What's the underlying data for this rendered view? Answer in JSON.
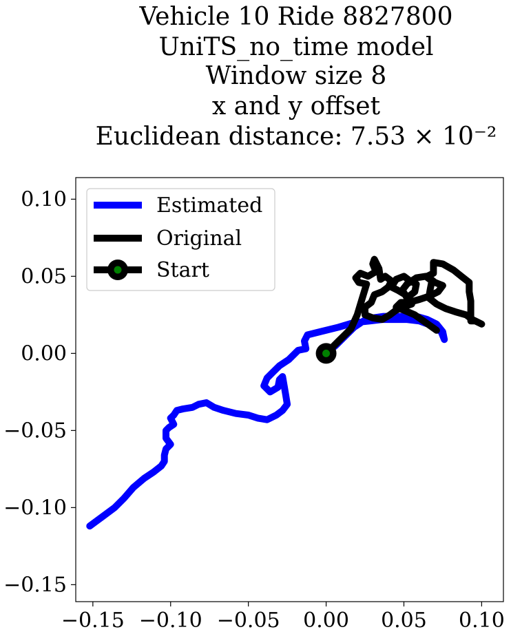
{
  "chart_data": {
    "type": "line",
    "title_lines": [
      "Vehicle 10 Ride 8827800",
      "UniTS_no_time model",
      "Window size 8",
      "x and y offset",
      "Euclidean distance: 7.53 × 10⁻²"
    ],
    "xlabel": "",
    "ylabel": "",
    "xlim": [
      -0.161,
      0.114
    ],
    "ylim": [
      -0.161,
      0.114
    ],
    "xticks": [
      -0.15,
      -0.1,
      -0.05,
      0.0,
      0.05,
      0.1
    ],
    "xtick_labels": [
      "−0.15",
      "−0.10",
      "−0.05",
      "0.00",
      "0.05",
      "0.10"
    ],
    "yticks": [
      -0.15,
      -0.1,
      -0.05,
      0.0,
      0.05,
      0.1
    ],
    "ytick_labels": [
      "−0.15",
      "−0.10",
      "−0.05",
      "0.00",
      "0.05",
      "0.10"
    ],
    "grid": false,
    "legend_position": "top-left",
    "legend": [
      {
        "label": "Estimated",
        "color": "#0000ff",
        "kind": "line"
      },
      {
        "label": "Original",
        "color": "#000000",
        "kind": "line"
      },
      {
        "label": "Start",
        "color": "#000000",
        "marker_color": "#008000",
        "kind": "marker"
      }
    ],
    "series": [
      {
        "name": "Estimated",
        "color": "#0000ff",
        "points": [
          [
            0.0,
            0.0
          ],
          [
            0.006,
            0.005
          ],
          [
            0.012,
            0.011
          ],
          [
            0.018,
            0.017
          ],
          [
            0.024,
            0.021
          ],
          [
            0.03,
            0.023
          ],
          [
            0.037,
            0.024
          ],
          [
            0.044,
            0.024
          ],
          [
            0.052,
            0.024
          ],
          [
            0.058,
            0.024
          ],
          [
            0.065,
            0.022
          ],
          [
            0.071,
            0.019
          ],
          [
            0.075,
            0.014
          ],
          [
            0.076,
            0.009
          ],
          [
            0.074,
            0.014
          ],
          [
            0.068,
            0.018
          ],
          [
            0.06,
            0.021
          ],
          [
            0.052,
            0.022
          ],
          [
            0.044,
            0.022
          ],
          [
            0.036,
            0.022
          ],
          [
            0.028,
            0.021
          ],
          [
            0.018,
            0.02
          ],
          [
            0.008,
            0.017
          ],
          [
            -0.004,
            0.014
          ],
          [
            -0.012,
            0.012
          ],
          [
            -0.014,
            0.008
          ],
          [
            -0.013,
            0.003
          ],
          [
            -0.018,
            0.002
          ],
          [
            -0.024,
            -0.004
          ],
          [
            -0.03,
            -0.008
          ],
          [
            -0.034,
            -0.012
          ],
          [
            -0.038,
            -0.016
          ],
          [
            -0.04,
            -0.021
          ],
          [
            -0.036,
            -0.025
          ],
          [
            -0.031,
            -0.022
          ],
          [
            -0.03,
            -0.017
          ],
          [
            -0.028,
            -0.015
          ],
          [
            -0.027,
            -0.021
          ],
          [
            -0.026,
            -0.027
          ],
          [
            -0.025,
            -0.033
          ],
          [
            -0.028,
            -0.037
          ],
          [
            -0.032,
            -0.04
          ],
          [
            -0.038,
            -0.043
          ],
          [
            -0.044,
            -0.042
          ],
          [
            -0.05,
            -0.04
          ],
          [
            -0.058,
            -0.039
          ],
          [
            -0.066,
            -0.037
          ],
          [
            -0.072,
            -0.035
          ],
          [
            -0.077,
            -0.032
          ],
          [
            -0.082,
            -0.033
          ],
          [
            -0.086,
            -0.035
          ],
          [
            -0.092,
            -0.036
          ],
          [
            -0.096,
            -0.037
          ],
          [
            -0.098,
            -0.04
          ],
          [
            -0.1,
            -0.042
          ],
          [
            -0.098,
            -0.046
          ],
          [
            -0.101,
            -0.048
          ],
          [
            -0.103,
            -0.05
          ],
          [
            -0.103,
            -0.055
          ],
          [
            -0.1,
            -0.059
          ],
          [
            -0.103,
            -0.062
          ],
          [
            -0.104,
            -0.066
          ],
          [
            -0.104,
            -0.07
          ],
          [
            -0.106,
            -0.073
          ],
          [
            -0.111,
            -0.077
          ],
          [
            -0.117,
            -0.081
          ],
          [
            -0.124,
            -0.087
          ],
          [
            -0.13,
            -0.094
          ],
          [
            -0.136,
            -0.1
          ],
          [
            -0.144,
            -0.106
          ],
          [
            -0.152,
            -0.112
          ]
        ]
      },
      {
        "name": "Original",
        "color": "#000000",
        "points": [
          [
            0.0,
            0.0
          ],
          [
            0.008,
            0.008
          ],
          [
            0.016,
            0.016
          ],
          [
            0.02,
            0.025
          ],
          [
            0.023,
            0.035
          ],
          [
            0.026,
            0.045
          ],
          [
            0.021,
            0.046
          ],
          [
            0.019,
            0.049
          ],
          [
            0.022,
            0.052
          ],
          [
            0.027,
            0.05
          ],
          [
            0.032,
            0.053
          ],
          [
            0.03,
            0.058
          ],
          [
            0.031,
            0.061
          ],
          [
            0.034,
            0.055
          ],
          [
            0.035,
            0.048
          ],
          [
            0.038,
            0.05
          ],
          [
            0.042,
            0.047
          ],
          [
            0.04,
            0.043
          ],
          [
            0.036,
            0.04
          ],
          [
            0.031,
            0.038
          ],
          [
            0.029,
            0.033
          ],
          [
            0.025,
            0.03
          ],
          [
            0.025,
            0.025
          ],
          [
            0.03,
            0.023
          ],
          [
            0.036,
            0.022
          ],
          [
            0.041,
            0.025
          ],
          [
            0.045,
            0.028
          ],
          [
            0.049,
            0.03
          ],
          [
            0.055,
            0.032
          ],
          [
            0.051,
            0.038
          ],
          [
            0.046,
            0.041
          ],
          [
            0.042,
            0.043
          ],
          [
            0.045,
            0.048
          ],
          [
            0.05,
            0.05
          ],
          [
            0.054,
            0.047
          ],
          [
            0.058,
            0.045
          ],
          [
            0.057,
            0.04
          ],
          [
            0.052,
            0.036
          ],
          [
            0.049,
            0.041
          ],
          [
            0.052,
            0.045
          ],
          [
            0.058,
            0.049
          ],
          [
            0.064,
            0.05
          ],
          [
            0.068,
            0.047
          ],
          [
            0.067,
            0.042
          ],
          [
            0.066,
            0.036
          ],
          [
            0.071,
            0.032
          ],
          [
            0.077,
            0.029
          ],
          [
            0.083,
            0.027
          ],
          [
            0.09,
            0.025
          ],
          [
            0.094,
            0.022
          ],
          [
            0.1,
            0.019
          ],
          [
            0.096,
            0.021
          ],
          [
            0.093,
            0.021
          ],
          [
            0.093,
            0.027
          ],
          [
            0.093,
            0.034
          ],
          [
            0.092,
            0.04
          ],
          [
            0.092,
            0.046
          ],
          [
            0.087,
            0.05
          ],
          [
            0.082,
            0.054
          ],
          [
            0.075,
            0.058
          ],
          [
            0.069,
            0.059
          ],
          [
            0.069,
            0.052
          ],
          [
            0.065,
            0.05
          ],
          [
            0.07,
            0.046
          ],
          [
            0.075,
            0.044
          ],
          [
            0.072,
            0.04
          ],
          [
            0.066,
            0.037
          ],
          [
            0.06,
            0.035
          ],
          [
            0.053,
            0.033
          ],
          [
            0.048,
            0.033
          ],
          [
            0.045,
            0.03
          ],
          [
            0.05,
            0.028
          ],
          [
            0.057,
            0.025
          ],
          [
            0.064,
            0.02
          ],
          [
            0.071,
            0.015
          ]
        ]
      }
    ],
    "start_point": {
      "x": 0.0,
      "y": 0.0,
      "outer_color": "#000000",
      "inner_color": "#008000"
    }
  }
}
